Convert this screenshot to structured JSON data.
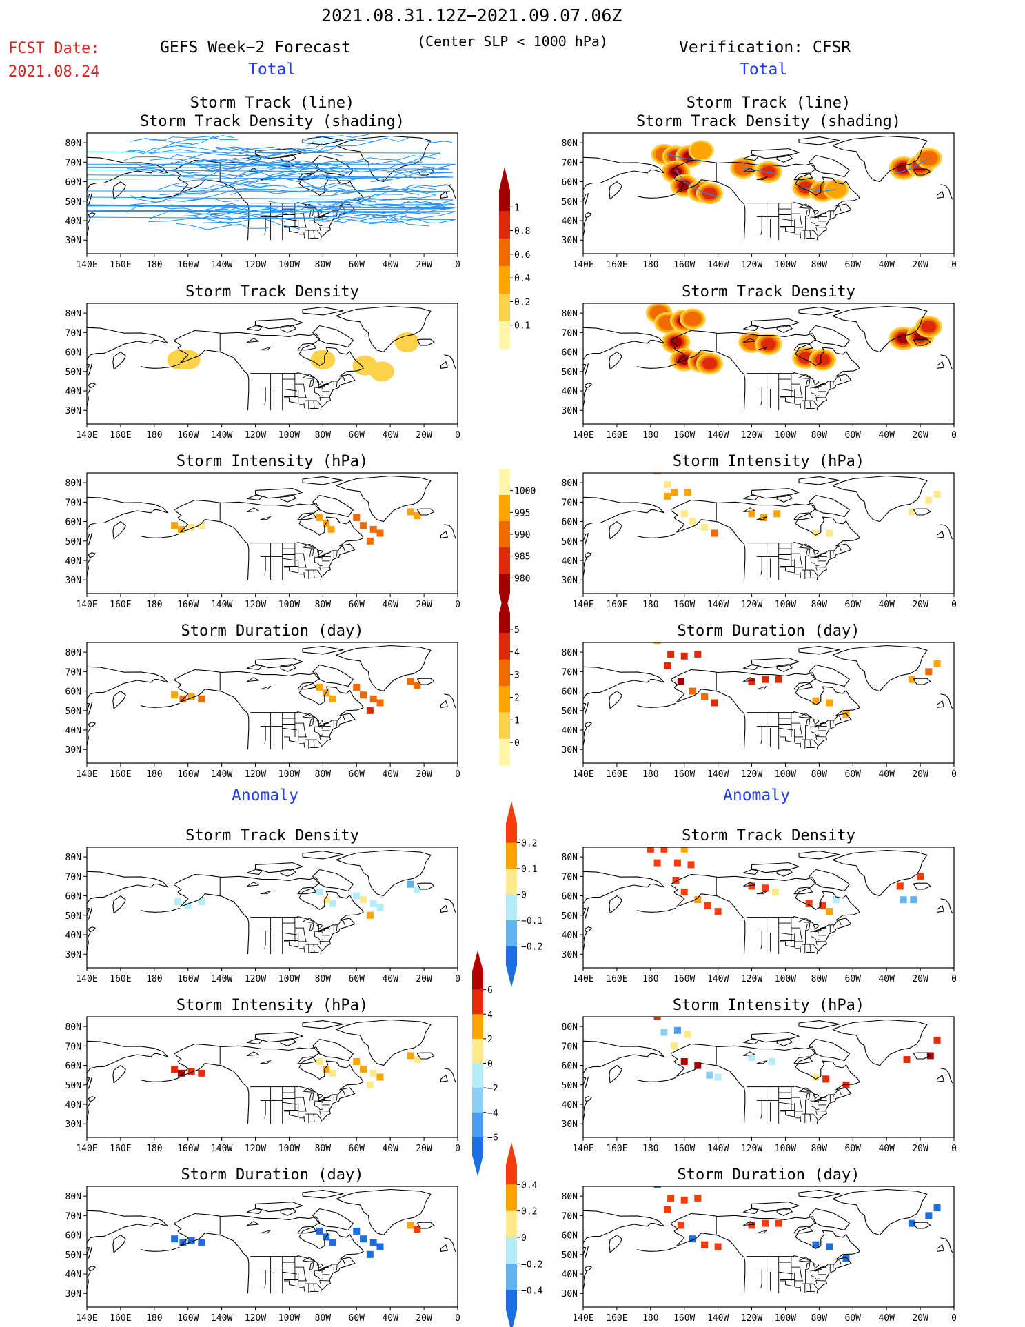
{
  "header": {
    "period": "2021.08.31.12Z−2021.09.07.06Z",
    "fcst_label": "FCST Date:",
    "fcst_date": "2021.08.24",
    "left_model": "GEFS Week−2 Forecast",
    "criterion": "(Center SLP < 1000 hPa)",
    "right_model": "Verification: CFSR",
    "total_label": "Total",
    "anomaly_label": "Anomaly"
  },
  "panel_titles": {
    "track_line": "Storm Track (line)",
    "track_density_shading": "Storm Track Density (shading)",
    "track_density": "Storm Track Density",
    "intensity": "Storm Intensity (hPa)",
    "duration": "Storm Duration (day)"
  },
  "axes": {
    "lon_ticks": [
      "140E",
      "160E",
      "180",
      "160W",
      "140W",
      "120W",
      "100W",
      "80W",
      "60W",
      "40W",
      "20W",
      "0"
    ],
    "lat_ticks": [
      "80N",
      "70N",
      "60N",
      "50N",
      "40N",
      "30N"
    ]
  },
  "colorbars": [
    {
      "name": "track-density-colorbar",
      "labels": [
        "1",
        "0.8",
        "0.6",
        "0.4",
        "0.2",
        "0.1"
      ],
      "colors": [
        "#a50000",
        "#dc2a0a",
        "#f06a00",
        "#fca400",
        "#fcd24b",
        "#fff6aa"
      ],
      "arrow": "top"
    },
    {
      "name": "intensity-colorbar",
      "labels": [
        "1000",
        "995",
        "990",
        "985",
        "980"
      ],
      "colors": [
        "#fff6aa",
        "#fca400",
        "#f06a00",
        "#dc2a0a",
        "#a50000"
      ],
      "arrow": "bottom"
    },
    {
      "name": "duration-colorbar",
      "labels": [
        "5",
        "4",
        "3",
        "2",
        "1",
        "0"
      ],
      "colors": [
        "#a50000",
        "#dc2a0a",
        "#f06a00",
        "#fca400",
        "#fcd24b",
        "#fff6aa"
      ],
      "arrow": "top"
    },
    {
      "name": "density-anomaly-colorbar",
      "labels": [
        "0.2",
        "0.1",
        "0",
        "−0.1",
        "−0.2"
      ],
      "colors": [
        "#f53c0a",
        "#fca400",
        "#fde88a",
        "#b4ecf8",
        "#62b4f0",
        "#1c6fe0"
      ],
      "arrow": "both"
    },
    {
      "name": "intensity-anomaly-colorbar",
      "labels": [
        "6",
        "4",
        "2",
        "0",
        "−2",
        "−4",
        "−6"
      ],
      "colors": [
        "#b40000",
        "#e62a0a",
        "#fca400",
        "#fde88a",
        "#b4ecf8",
        "#8ccff5",
        "#4a9cf0",
        "#1c6fe0"
      ],
      "arrow": "both"
    },
    {
      "name": "duration-anomaly-colorbar",
      "labels": [
        "0.4",
        "0.2",
        "0",
        "−0.2",
        "−0.4"
      ],
      "colors": [
        "#f53c0a",
        "#fca400",
        "#fde88a",
        "#b4ecf8",
        "#62b4f0",
        "#1c6fe0"
      ],
      "arrow": "both"
    }
  ],
  "panels": [
    {
      "name": "gefs-track-line-map",
      "col": "left",
      "title_keys": [
        "track_line",
        "track_density_shading"
      ],
      "kind": "lines",
      "line_color": "#1e8fff"
    },
    {
      "name": "cfsr-track-line-map",
      "col": "right",
      "title_keys": [
        "track_line",
        "track_density_shading"
      ],
      "kind": "blobs",
      "cells": [
        [
          -172,
          74,
          0.4
        ],
        [
          -165,
          73,
          0.6
        ],
        [
          -157,
          73,
          0.8
        ],
        [
          -150,
          76,
          0.3
        ],
        [
          -165,
          65,
          0.9
        ],
        [
          -160,
          58,
          0.8
        ],
        [
          -150,
          55,
          0.7
        ],
        [
          -145,
          54,
          0.6
        ],
        [
          -125,
          67,
          0.5
        ],
        [
          -110,
          65,
          0.6
        ],
        [
          -88,
          57,
          0.6
        ],
        [
          -78,
          55,
          0.5
        ],
        [
          -70,
          56,
          0.3
        ],
        [
          -30,
          67,
          1.0
        ],
        [
          -20,
          68,
          0.7
        ],
        [
          -15,
          72,
          0.5
        ]
      ]
    },
    {
      "name": "gefs-track-density-map",
      "col": "left",
      "title_keys": [
        "track_density"
      ],
      "kind": "blobs",
      "cells": [
        [
          -165,
          56,
          0.12
        ],
        [
          -160,
          56,
          0.12
        ],
        [
          -80,
          56,
          0.12
        ],
        [
          -55,
          53,
          0.15
        ],
        [
          -45,
          50,
          0.12
        ],
        [
          -30,
          65,
          0.12
        ]
      ]
    },
    {
      "name": "cfsr-track-density-map",
      "col": "right",
      "title_keys": [
        "track_density"
      ],
      "kind": "blobs",
      "cells": [
        [
          -175,
          80,
          0.5
        ],
        [
          -170,
          75,
          0.5
        ],
        [
          -160,
          76,
          0.9
        ],
        [
          -155,
          77,
          0.4
        ],
        [
          -165,
          65,
          0.9
        ],
        [
          -160,
          56,
          0.9
        ],
        [
          -150,
          55,
          0.6
        ],
        [
          -145,
          54,
          0.6
        ],
        [
          -120,
          65,
          0.5
        ],
        [
          -110,
          64,
          0.6
        ],
        [
          -88,
          57,
          0.6
        ],
        [
          -78,
          56,
          0.6
        ],
        [
          -30,
          67,
          1.0
        ],
        [
          -20,
          68,
          0.8
        ],
        [
          -15,
          73,
          0.6
        ]
      ]
    },
    {
      "name": "gefs-intensity-map",
      "col": "left",
      "title_keys": [
        "intensity"
      ],
      "kind": "cells",
      "cells": [
        [
          -168,
          58,
          "#fca400"
        ],
        [
          -164,
          56,
          "#fca400"
        ],
        [
          -158,
          57,
          "#fde88a"
        ],
        [
          -152,
          58,
          "#fde88a"
        ],
        [
          -82,
          62,
          "#fca400"
        ],
        [
          -78,
          59,
          "#fca400"
        ],
        [
          -75,
          56,
          "#fca400"
        ],
        [
          -60,
          62,
          "#f06a00"
        ],
        [
          -56,
          58,
          "#f06a00"
        ],
        [
          -50,
          56,
          "#f06a00"
        ],
        [
          -46,
          54,
          "#f06a00"
        ],
        [
          -52,
          50,
          "#f06a00"
        ],
        [
          -28,
          65,
          "#fca400"
        ],
        [
          -24,
          63,
          "#fca400"
        ]
      ]
    },
    {
      "name": "cfsr-intensity-map",
      "col": "right",
      "title_keys": [
        "intensity"
      ],
      "kind": "cells",
      "cells": [
        [
          -176,
          86,
          "#fca400"
        ],
        [
          -170,
          79,
          "#fde88a"
        ],
        [
          -166,
          75,
          "#fca400"
        ],
        [
          -158,
          75,
          "#fca400"
        ],
        [
          -170,
          73,
          "#fca400"
        ],
        [
          -160,
          64,
          "#fde88a"
        ],
        [
          -155,
          60,
          "#fde88a"
        ],
        [
          -148,
          57,
          "#fde88a"
        ],
        [
          -142,
          54,
          "#f06a00"
        ],
        [
          -120,
          64,
          "#fca400"
        ],
        [
          -113,
          62,
          "#fca400"
        ],
        [
          -105,
          64,
          "#fca400"
        ],
        [
          -82,
          54,
          "#fde88a"
        ],
        [
          -74,
          54,
          "#fde88a"
        ],
        [
          -25,
          65,
          "#fde88a"
        ],
        [
          -15,
          71,
          "#fde88a"
        ],
        [
          -10,
          74,
          "#fde88a"
        ]
      ]
    },
    {
      "name": "gefs-duration-map",
      "col": "left",
      "title_keys": [
        "duration"
      ],
      "kind": "cells",
      "cells": [
        [
          -168,
          58,
          "#fca400"
        ],
        [
          -163,
          56,
          "#f06a00"
        ],
        [
          -158,
          57,
          "#fca400"
        ],
        [
          -152,
          56,
          "#f06a00"
        ],
        [
          -82,
          62,
          "#fca400"
        ],
        [
          -78,
          59,
          "#fca400"
        ],
        [
          -74,
          56,
          "#fca400"
        ],
        [
          -60,
          62,
          "#f06a00"
        ],
        [
          -56,
          58,
          "#f06a00"
        ],
        [
          -50,
          56,
          "#f06a00"
        ],
        [
          -46,
          54,
          "#f06a00"
        ],
        [
          -52,
          50,
          "#dc2a0a"
        ],
        [
          -28,
          65,
          "#f06a00"
        ],
        [
          -24,
          63,
          "#f06a00"
        ]
      ]
    },
    {
      "name": "cfsr-duration-map",
      "col": "right",
      "title_keys": [
        "duration"
      ],
      "kind": "cells",
      "cells": [
        [
          -176,
          86,
          "#fca400"
        ],
        [
          -168,
          79,
          "#dc2a0a"
        ],
        [
          -160,
          78,
          "#dc2a0a"
        ],
        [
          -152,
          79,
          "#dc2a0a"
        ],
        [
          -170,
          73,
          "#dc2a0a"
        ],
        [
          -162,
          65,
          "#a50000"
        ],
        [
          -155,
          60,
          "#f06a00"
        ],
        [
          -148,
          57,
          "#f06a00"
        ],
        [
          -142,
          54,
          "#dc2a0a"
        ],
        [
          -120,
          65,
          "#dc2a0a"
        ],
        [
          -112,
          66,
          "#dc2a0a"
        ],
        [
          -104,
          66,
          "#dc2a0a"
        ],
        [
          -82,
          55,
          "#fca400"
        ],
        [
          -74,
          54,
          "#fca400"
        ],
        [
          -64,
          48,
          "#fca400"
        ],
        [
          -25,
          66,
          "#fca400"
        ],
        [
          -15,
          70,
          "#f06a00"
        ],
        [
          -10,
          74,
          "#fca400"
        ]
      ]
    },
    {
      "name": "gefs-density-anomaly-map",
      "col": "left",
      "title_keys": [
        "track_density"
      ],
      "kind": "cells",
      "section": "anomaly",
      "cells": [
        [
          -166,
          57,
          "#b4ecf8"
        ],
        [
          -160,
          55,
          "#b4ecf8"
        ],
        [
          -152,
          57,
          "#b4ecf8"
        ],
        [
          -82,
          62,
          "#b4ecf8"
        ],
        [
          -78,
          58,
          "#fde88a"
        ],
        [
          -74,
          56,
          "#b4ecf8"
        ],
        [
          -60,
          60,
          "#b4ecf8"
        ],
        [
          -56,
          58,
          "#fde88a"
        ],
        [
          -50,
          56,
          "#b4ecf8"
        ],
        [
          -46,
          54,
          "#b4ecf8"
        ],
        [
          -52,
          50,
          "#fca400"
        ],
        [
          -28,
          66,
          "#62b4f0"
        ],
        [
          -24,
          63,
          "#b4ecf8"
        ]
      ]
    },
    {
      "name": "cfsr-density-anomaly-map",
      "col": "right",
      "title_keys": [
        "track_density"
      ],
      "kind": "cells",
      "section": "anomaly",
      "cells": [
        [
          -180,
          84,
          "#f53c0a"
        ],
        [
          -172,
          84,
          "#f53c0a"
        ],
        [
          -160,
          84,
          "#fca400"
        ],
        [
          -176,
          77,
          "#f53c0a"
        ],
        [
          -164,
          77,
          "#f53c0a"
        ],
        [
          -156,
          76,
          "#f53c0a"
        ],
        [
          -165,
          68,
          "#f53c0a"
        ],
        [
          -160,
          62,
          "#f53c0a"
        ],
        [
          -152,
          58,
          "#fca400"
        ],
        [
          -146,
          55,
          "#f53c0a"
        ],
        [
          -140,
          52,
          "#f53c0a"
        ],
        [
          -120,
          65,
          "#f53c0a"
        ],
        [
          -112,
          64,
          "#f53c0a"
        ],
        [
          -106,
          62,
          "#fde88a"
        ],
        [
          -86,
          56,
          "#f53c0a"
        ],
        [
          -78,
          55,
          "#f53c0a"
        ],
        [
          -74,
          52,
          "#fca400"
        ],
        [
          -70,
          58,
          "#b4ecf8"
        ],
        [
          -32,
          65,
          "#f53c0a"
        ],
        [
          -20,
          70,
          "#f53c0a"
        ],
        [
          -30,
          58,
          "#62b4f0"
        ],
        [
          -24,
          58,
          "#62b4f0"
        ]
      ]
    },
    {
      "name": "gefs-intensity-anomaly-map",
      "col": "left",
      "title_keys": [
        "intensity"
      ],
      "kind": "cells",
      "section": "anomaly",
      "cells": [
        [
          -168,
          58,
          "#e62a0a"
        ],
        [
          -164,
          56,
          "#b40000"
        ],
        [
          -158,
          57,
          "#e62a0a"
        ],
        [
          -152,
          56,
          "#e62a0a"
        ],
        [
          -82,
          62,
          "#fde88a"
        ],
        [
          -78,
          58,
          "#fca400"
        ],
        [
          -74,
          56,
          "#fde88a"
        ],
        [
          -60,
          62,
          "#fca400"
        ],
        [
          -56,
          58,
          "#fca400"
        ],
        [
          -50,
          56,
          "#fde88a"
        ],
        [
          -46,
          54,
          "#fca400"
        ],
        [
          -52,
          50,
          "#fde88a"
        ],
        [
          -28,
          65,
          "#fca400"
        ],
        [
          -24,
          63,
          "#fde88a"
        ]
      ]
    },
    {
      "name": "cfsr-intensity-anomaly-map",
      "col": "right",
      "title_keys": [
        "intensity"
      ],
      "kind": "cells",
      "section": "anomaly",
      "cells": [
        [
          -176,
          85,
          "#e62a0a"
        ],
        [
          -172,
          77,
          "#8ccff5"
        ],
        [
          -164,
          78,
          "#4a9cf0"
        ],
        [
          -158,
          76,
          "#fde88a"
        ],
        [
          -166,
          70,
          "#fde88a"
        ],
        [
          -160,
          62,
          "#b40000"
        ],
        [
          -152,
          60,
          "#b40000"
        ],
        [
          -145,
          55,
          "#8ccff5"
        ],
        [
          -140,
          54,
          "#b4ecf8"
        ],
        [
          -120,
          64,
          "#b4ecf8"
        ],
        [
          -108,
          62,
          "#b4ecf8"
        ],
        [
          -82,
          54,
          "#fde88a"
        ],
        [
          -76,
          53,
          "#e62a0a"
        ],
        [
          -64,
          50,
          "#e62a0a"
        ],
        [
          -28,
          63,
          "#e62a0a"
        ],
        [
          -14,
          65,
          "#b40000"
        ],
        [
          -10,
          73,
          "#e62a0a"
        ]
      ]
    },
    {
      "name": "gefs-duration-anomaly-map",
      "col": "left",
      "title_keys": [
        "duration"
      ],
      "kind": "cells",
      "section": "anomaly",
      "cells": [
        [
          -168,
          58,
          "#1c6fe0"
        ],
        [
          -163,
          56,
          "#1c6fe0"
        ],
        [
          -158,
          57,
          "#1c6fe0"
        ],
        [
          -152,
          56,
          "#1c6fe0"
        ],
        [
          -82,
          62,
          "#1c6fe0"
        ],
        [
          -78,
          59,
          "#1c6fe0"
        ],
        [
          -74,
          56,
          "#1c6fe0"
        ],
        [
          -60,
          62,
          "#1c6fe0"
        ],
        [
          -56,
          58,
          "#1c6fe0"
        ],
        [
          -50,
          56,
          "#1c6fe0"
        ],
        [
          -46,
          54,
          "#1c6fe0"
        ],
        [
          -52,
          50,
          "#1c6fe0"
        ],
        [
          -28,
          65,
          "#fca400"
        ],
        [
          -24,
          63,
          "#f53c0a"
        ]
      ]
    },
    {
      "name": "cfsr-duration-anomaly-map",
      "col": "right",
      "title_keys": [
        "duration"
      ],
      "kind": "cells",
      "section": "anomaly",
      "cells": [
        [
          -176,
          86,
          "#1c6fe0"
        ],
        [
          -168,
          79,
          "#f53c0a"
        ],
        [
          -160,
          78,
          "#f53c0a"
        ],
        [
          -152,
          79,
          "#f53c0a"
        ],
        [
          -170,
          73,
          "#f53c0a"
        ],
        [
          -162,
          65,
          "#f53c0a"
        ],
        [
          -155,
          58,
          "#1c6fe0"
        ],
        [
          -148,
          55,
          "#f53c0a"
        ],
        [
          -140,
          54,
          "#f53c0a"
        ],
        [
          -120,
          65,
          "#f53c0a"
        ],
        [
          -112,
          66,
          "#f53c0a"
        ],
        [
          -104,
          66,
          "#f53c0a"
        ],
        [
          -82,
          55,
          "#1c6fe0"
        ],
        [
          -74,
          54,
          "#1c6fe0"
        ],
        [
          -64,
          48,
          "#1c6fe0"
        ],
        [
          -25,
          66,
          "#1c6fe0"
        ],
        [
          -15,
          70,
          "#1c6fe0"
        ],
        [
          -10,
          74,
          "#1c6fe0"
        ]
      ]
    }
  ]
}
